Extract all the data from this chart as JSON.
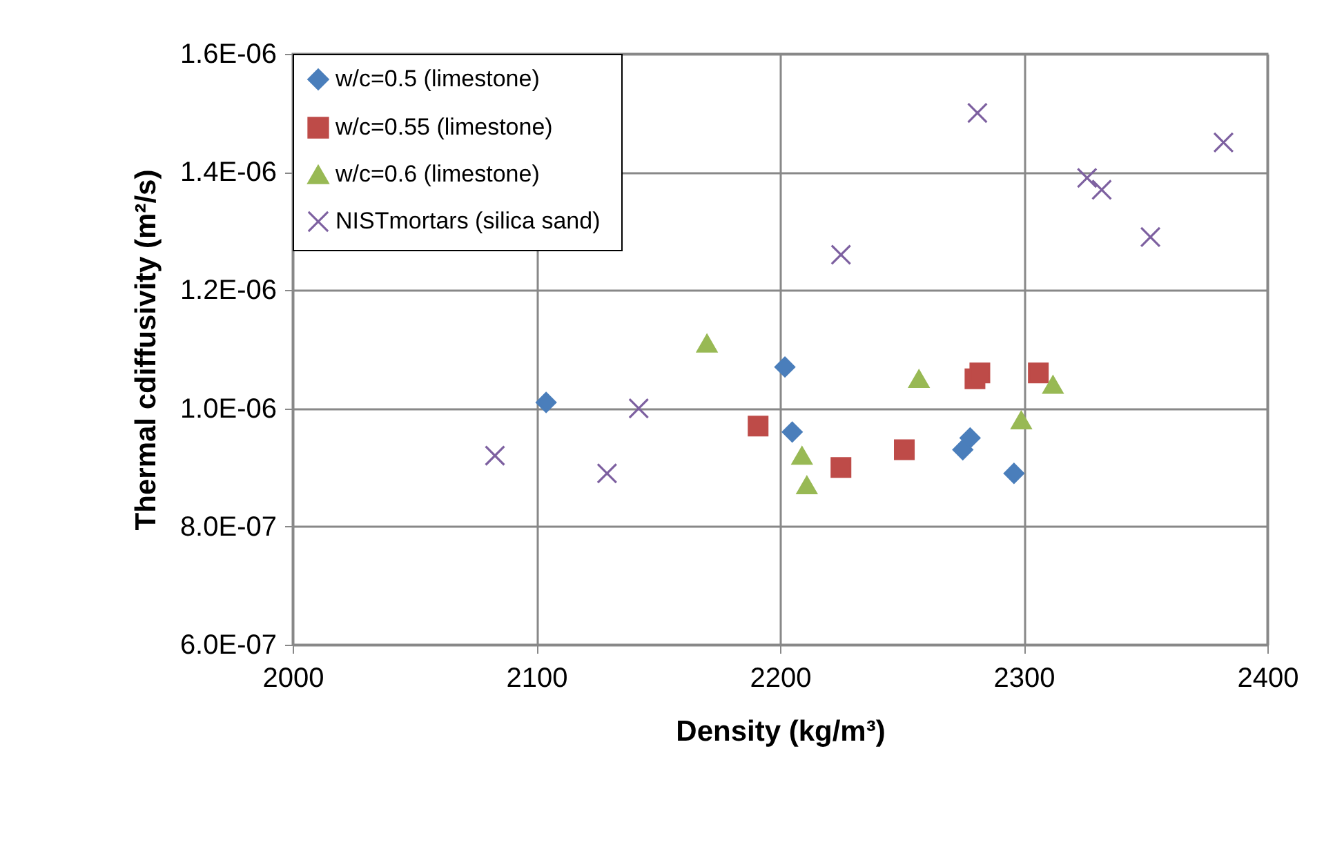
{
  "chart_data": {
    "type": "scatter",
    "xlabel": "Density (kg/m³)",
    "ylabel": "Thermal cdiffusivity (m²/s)",
    "xlim": [
      2000,
      2400
    ],
    "xticks": [
      2000,
      2100,
      2200,
      2300,
      2400
    ],
    "ylim": [
      6e-07,
      1.6e-06
    ],
    "yticks": [
      {
        "value": 6e-07,
        "label": "6.0E-07"
      },
      {
        "value": 8e-07,
        "label": "8.0E-07"
      },
      {
        "value": 1e-06,
        "label": "1.0E-06"
      },
      {
        "value": 1.2e-06,
        "label": "1.2E-06"
      },
      {
        "value": 1.4e-06,
        "label": "1.4E-06"
      },
      {
        "value": 1.6e-06,
        "label": "1.6E-06"
      }
    ],
    "grid": true,
    "legend": "top left",
    "series": [
      {
        "name": "w/c=0.5 (limestone)",
        "color": "#4a7ebb",
        "marker": "diamond",
        "x": [
          2104,
          2202,
          2205,
          2275,
          2278,
          2296
        ],
        "values": [
          1.01e-06,
          1.07e-06,
          9.6e-07,
          9.3e-07,
          9.5e-07,
          8.9e-07
        ]
      },
      {
        "name": "w/c=0.55 (limestone)",
        "color": "#be4b48",
        "marker": "square",
        "x": [
          2191,
          2225,
          2251,
          2280,
          2282,
          2306
        ],
        "values": [
          9.7e-07,
          9e-07,
          9.3e-07,
          1.05e-06,
          1.06e-06,
          1.06e-06
        ]
      },
      {
        "name": "w/c=0.6 (limestone)",
        "color": "#98b954",
        "marker": "triangle",
        "x": [
          2170,
          2209,
          2211,
          2257,
          2299,
          2312
        ],
        "values": [
          1.11e-06,
          9.2e-07,
          8.7e-07,
          1.05e-06,
          9.8e-07,
          1.04e-06
        ]
      },
      {
        "name": "NISTmortars  (silica sand)",
        "color": "#7d60a0",
        "marker": "cross",
        "x": [
          2083,
          2129,
          2142,
          2225,
          2281,
          2326,
          2332,
          2352,
          2382
        ],
        "values": [
          9.2e-07,
          8.9e-07,
          1e-06,
          1.26e-06,
          1.5e-06,
          1.39e-06,
          1.37e-06,
          1.29e-06,
          1.45e-06
        ]
      }
    ]
  }
}
